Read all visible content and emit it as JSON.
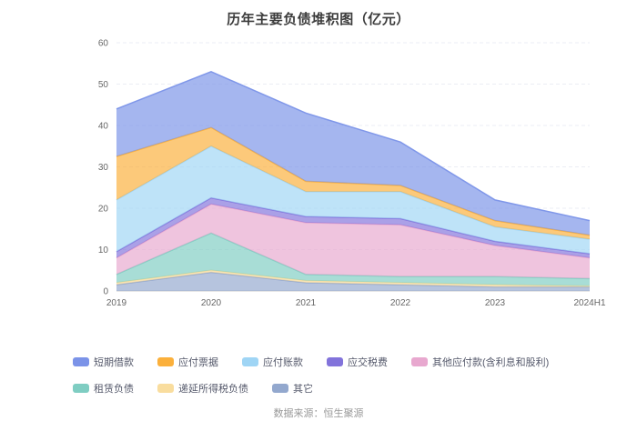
{
  "page": {
    "source": "数据来源：恒生聚源"
  },
  "chart_data": {
    "type": "area",
    "stacked": true,
    "title": "历年主要负债堆积图（亿元）",
    "categories": [
      "2019",
      "2020",
      "2021",
      "2022",
      "2023",
      "2024H1"
    ],
    "xlabel": "",
    "ylabel": "",
    "ylim": [
      0,
      60
    ],
    "yticks": [
      0,
      10,
      20,
      30,
      40,
      50,
      60
    ],
    "grid": true,
    "legend_position": "bottom",
    "series": [
      {
        "id": "short-term-borrowings",
        "name": "短期借款",
        "color": "#7B93E8",
        "values": [
          11.5,
          13.5,
          16.5,
          10.5,
          5.0,
          3.5
        ]
      },
      {
        "id": "notes-payable",
        "name": "应付票据",
        "color": "#FBB03B",
        "values": [
          10.5,
          4.5,
          2.5,
          1.5,
          1.5,
          1.0
        ]
      },
      {
        "id": "accounts-payable",
        "name": "应付账款",
        "color": "#9FD5F5",
        "values": [
          12.5,
          12.5,
          6.0,
          6.5,
          3.5,
          3.5
        ]
      },
      {
        "id": "taxes-payable",
        "name": "应交税费",
        "color": "#8273DB",
        "values": [
          1.5,
          1.5,
          1.5,
          1.5,
          1.0,
          1.0
        ]
      },
      {
        "id": "other-payables",
        "name": "其他应付款(含利息和股利)",
        "color": "#E8A8CF",
        "values": [
          4.0,
          7.0,
          12.5,
          12.5,
          7.5,
          5.0
        ]
      },
      {
        "id": "lease-liabilities",
        "name": "租赁负债",
        "color": "#7FCDC2",
        "values": [
          2.0,
          9.0,
          1.5,
          1.5,
          2.0,
          1.8
        ]
      },
      {
        "id": "deferred-income-tax-liabilities",
        "name": "递延所得税负债",
        "color": "#F9DD9E",
        "values": [
          0.5,
          0.5,
          0.5,
          0.5,
          0.5,
          0.2
        ]
      },
      {
        "id": "others",
        "name": "其它",
        "color": "#93A8CE",
        "values": [
          1.5,
          4.5,
          2.0,
          1.5,
          1.0,
          1.0
        ]
      }
    ]
  }
}
